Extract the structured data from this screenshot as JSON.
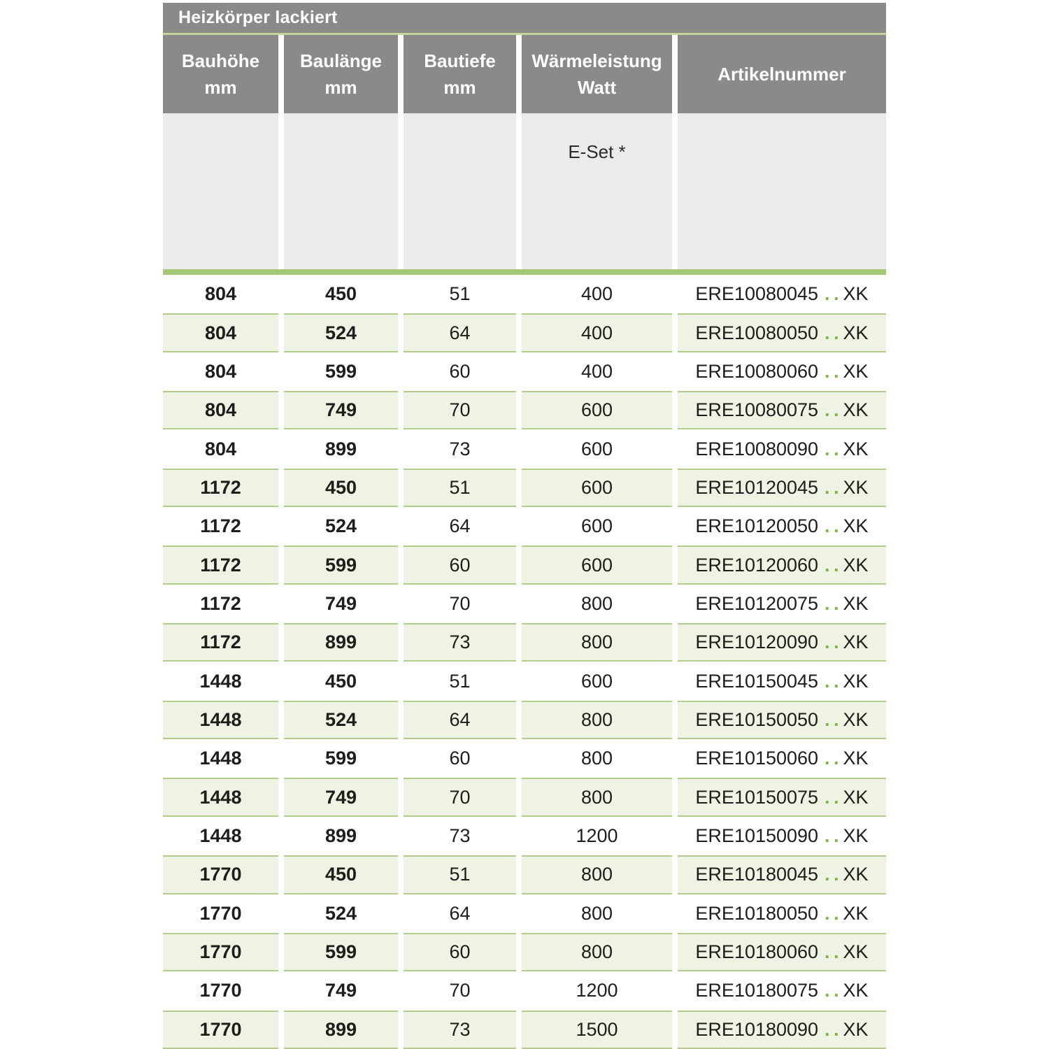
{
  "title_bar": {
    "title": "Heizkörper lackiert"
  },
  "header": {
    "columns": [
      {
        "line1": "Bauhöhe",
        "line2": "mm"
      },
      {
        "line1": "Baulänge",
        "line2": "mm"
      },
      {
        "line1": "Bautiefe",
        "line2": "mm"
      },
      {
        "line1": "Wärmeleistung",
        "line2": "Watt"
      },
      {
        "line1": "Artikelnummer",
        "line2": ""
      }
    ],
    "subheader_note": "E-Set *"
  },
  "rows": [
    {
      "bauhoehe": "804",
      "baulaenge": "450",
      "bautiefe": "51",
      "watt": "400",
      "artikel_prefix": "ERE10080045",
      "artikel_dots": "..",
      "artikel_suffix": "XK"
    },
    {
      "bauhoehe": "804",
      "baulaenge": "524",
      "bautiefe": "64",
      "watt": "400",
      "artikel_prefix": "ERE10080050",
      "artikel_dots": "..",
      "artikel_suffix": "XK"
    },
    {
      "bauhoehe": "804",
      "baulaenge": "599",
      "bautiefe": "60",
      "watt": "400",
      "artikel_prefix": "ERE10080060",
      "artikel_dots": "..",
      "artikel_suffix": "XK"
    },
    {
      "bauhoehe": "804",
      "baulaenge": "749",
      "bautiefe": "70",
      "watt": "600",
      "artikel_prefix": "ERE10080075",
      "artikel_dots": "..",
      "artikel_suffix": "XK"
    },
    {
      "bauhoehe": "804",
      "baulaenge": "899",
      "bautiefe": "73",
      "watt": "600",
      "artikel_prefix": "ERE10080090",
      "artikel_dots": "..",
      "artikel_suffix": "XK"
    },
    {
      "bauhoehe": "1172",
      "baulaenge": "450",
      "bautiefe": "51",
      "watt": "600",
      "artikel_prefix": "ERE10120045",
      "artikel_dots": "..",
      "artikel_suffix": "XK"
    },
    {
      "bauhoehe": "1172",
      "baulaenge": "524",
      "bautiefe": "64",
      "watt": "600",
      "artikel_prefix": "ERE10120050",
      "artikel_dots": "..",
      "artikel_suffix": "XK"
    },
    {
      "bauhoehe": "1172",
      "baulaenge": "599",
      "bautiefe": "60",
      "watt": "600",
      "artikel_prefix": "ERE10120060",
      "artikel_dots": "..",
      "artikel_suffix": "XK"
    },
    {
      "bauhoehe": "1172",
      "baulaenge": "749",
      "bautiefe": "70",
      "watt": "800",
      "artikel_prefix": "ERE10120075",
      "artikel_dots": "..",
      "artikel_suffix": "XK"
    },
    {
      "bauhoehe": "1172",
      "baulaenge": "899",
      "bautiefe": "73",
      "watt": "800",
      "artikel_prefix": "ERE10120090",
      "artikel_dots": "..",
      "artikel_suffix": "XK"
    },
    {
      "bauhoehe": "1448",
      "baulaenge": "450",
      "bautiefe": "51",
      "watt": "600",
      "artikel_prefix": "ERE10150045",
      "artikel_dots": "..",
      "artikel_suffix": "XK"
    },
    {
      "bauhoehe": "1448",
      "baulaenge": "524",
      "bautiefe": "64",
      "watt": "800",
      "artikel_prefix": "ERE10150050",
      "artikel_dots": "..",
      "artikel_suffix": "XK"
    },
    {
      "bauhoehe": "1448",
      "baulaenge": "599",
      "bautiefe": "60",
      "watt": "800",
      "artikel_prefix": "ERE10150060",
      "artikel_dots": "..",
      "artikel_suffix": "XK"
    },
    {
      "bauhoehe": "1448",
      "baulaenge": "749",
      "bautiefe": "70",
      "watt": "800",
      "artikel_prefix": "ERE10150075",
      "artikel_dots": "..",
      "artikel_suffix": "XK"
    },
    {
      "bauhoehe": "1448",
      "baulaenge": "899",
      "bautiefe": "73",
      "watt": "1200",
      "artikel_prefix": "ERE10150090",
      "artikel_dots": "..",
      "artikel_suffix": "XK"
    },
    {
      "bauhoehe": "1770",
      "baulaenge": "450",
      "bautiefe": "51",
      "watt": "800",
      "artikel_prefix": "ERE10180045",
      "artikel_dots": "..",
      "artikel_suffix": "XK"
    },
    {
      "bauhoehe": "1770",
      "baulaenge": "524",
      "bautiefe": "64",
      "watt": "800",
      "artikel_prefix": "ERE10180050",
      "artikel_dots": "..",
      "artikel_suffix": "XK"
    },
    {
      "bauhoehe": "1770",
      "baulaenge": "599",
      "bautiefe": "60",
      "watt": "800",
      "artikel_prefix": "ERE10180060",
      "artikel_dots": "..",
      "artikel_suffix": "XK"
    },
    {
      "bauhoehe": "1770",
      "baulaenge": "749",
      "bautiefe": "70",
      "watt": "1200",
      "artikel_prefix": "ERE10180075",
      "artikel_dots": "..",
      "artikel_suffix": "XK"
    },
    {
      "bauhoehe": "1770",
      "baulaenge": "899",
      "bautiefe": "73",
      "watt": "1500",
      "artikel_prefix": "ERE10180090",
      "artikel_dots": "..",
      "artikel_suffix": "XK"
    }
  ],
  "colors": {
    "header_gray": "#8a8a89",
    "subheader_gray": "#ebebeb",
    "accent_green_bar": "#a5c876",
    "title_underline_green": "#c3d49c",
    "row_green_bg": "#eff3e3",
    "row_border_green": "#b2cc8a",
    "dot_green": "#79b43e",
    "text_black": "#1d1d1b",
    "header_text_white": "#ffffff"
  }
}
